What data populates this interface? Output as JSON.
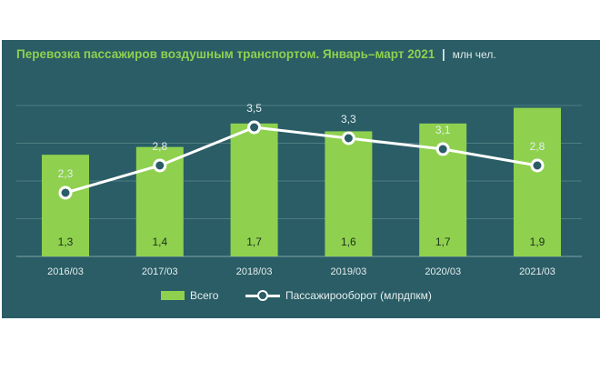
{
  "title": "Перевозка пассажиров воздушным транспортом. Январь–март 2021",
  "title_separator": "|",
  "unit": "млн чел.",
  "colors": {
    "background": "#2a5d66",
    "bar": "#8fd14f",
    "line": "#ffffff"
  },
  "chart_data": {
    "type": "bar",
    "categories": [
      "2016/03",
      "2017/03",
      "2018/03",
      "2019/03",
      "2020/03",
      "2021/03"
    ],
    "series": [
      {
        "name": "Всего",
        "type": "bar",
        "values": [
          1.3,
          1.4,
          1.7,
          1.6,
          1.7,
          1.9
        ],
        "labels": [
          "1,3",
          "1,4",
          "1,7",
          "1,6",
          "1,7",
          "1,9"
        ]
      },
      {
        "name": "Пассажирооборот (млрдпкм)",
        "type": "line",
        "values": [
          2.3,
          2.8,
          3.5,
          3.3,
          3.1,
          2.8
        ],
        "labels": [
          "2,3",
          "2,8",
          "3,5",
          "3,3",
          "3,1",
          "2,8"
        ]
      }
    ],
    "legend": [
      "Всего",
      "Пассажирооборот (млрдпкм)"
    ],
    "legend_position": "bottom",
    "grid": true
  }
}
